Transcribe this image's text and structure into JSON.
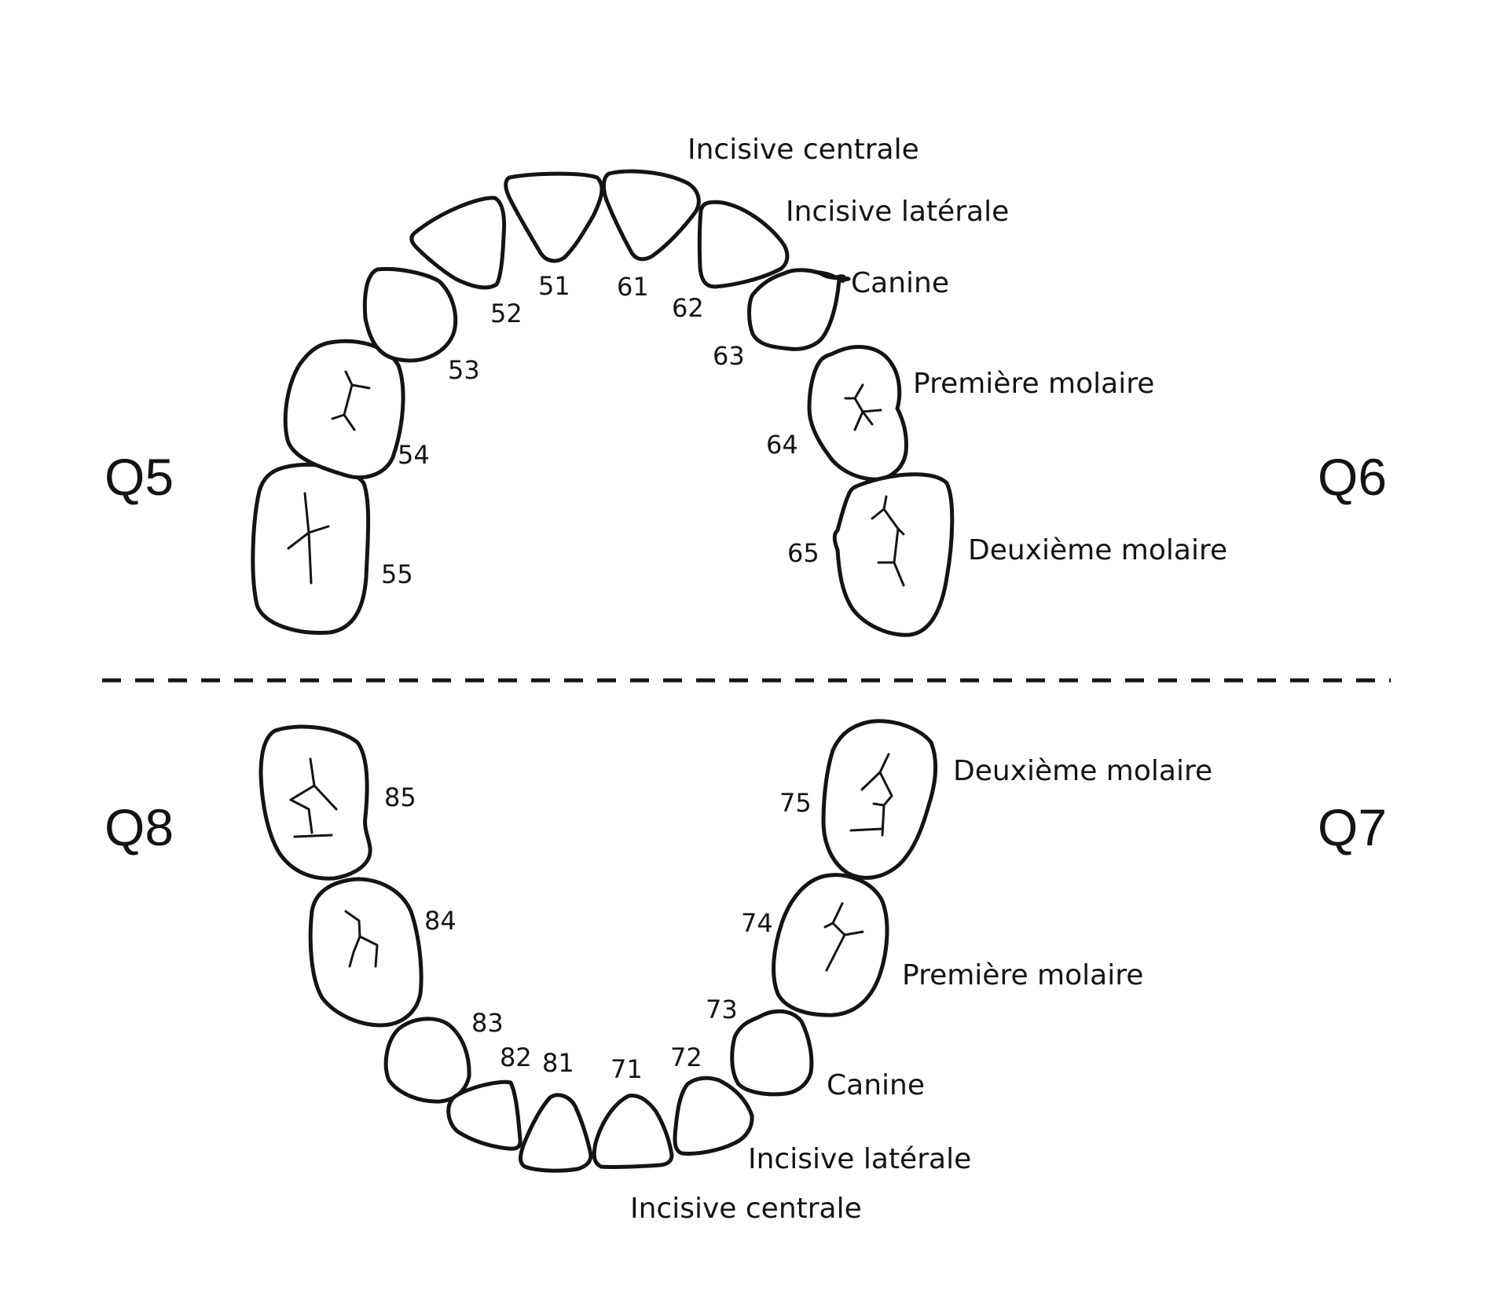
{
  "quadrants": {
    "q5": "Q5",
    "q6": "Q6",
    "q7": "Q7",
    "q8": "Q8"
  },
  "tooth_names": {
    "upper": {
      "central_incisor": "Incisive centrale",
      "lateral_incisor": "Incisive latérale",
      "canine": "Canine",
      "first_molar": "Première molaire",
      "second_molar": "Deuxième molaire"
    },
    "lower": {
      "central_incisor": "Incisive centrale",
      "lateral_incisor": "Incisive latérale",
      "canine": "Canine",
      "first_molar": "Première molaire",
      "second_molar": "Deuxième molaire"
    }
  },
  "tooth_numbers": {
    "t51": "51",
    "t52": "52",
    "t53": "53",
    "t54": "54",
    "t55": "55",
    "t61": "61",
    "t62": "62",
    "t63": "63",
    "t64": "64",
    "t65": "65",
    "t71": "71",
    "t72": "72",
    "t73": "73",
    "t74": "74",
    "t75": "75",
    "t81": "81",
    "t82": "82",
    "t83": "83",
    "t84": "84",
    "t85": "85"
  },
  "colors": {
    "ink": "#141414",
    "background": "#ffffff"
  }
}
